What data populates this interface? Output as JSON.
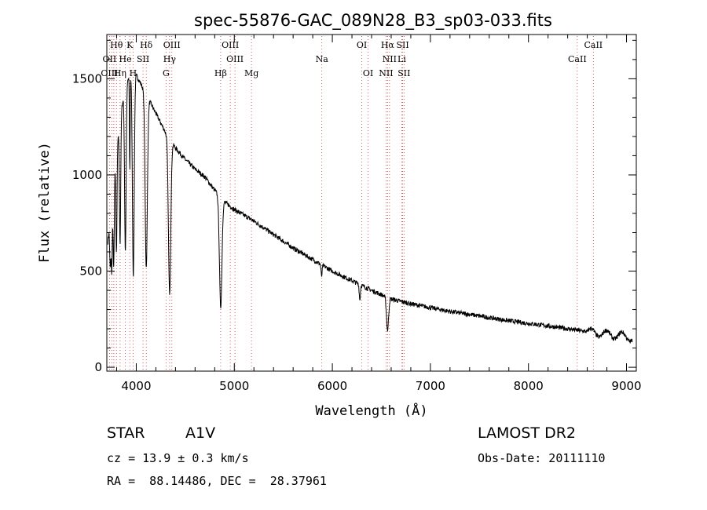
{
  "chart_data": {
    "type": "line",
    "title": "spec-55876-GAC_089N28_B3_sp03-033.fits",
    "xlabel": "Wavelength (Å)",
    "ylabel": "Flux (relative)",
    "xlim": [
      3700,
      9100
    ],
    "ylim": [
      -20,
      1730
    ],
    "x_ticks": [
      4000,
      5000,
      6000,
      7000,
      8000,
      9000
    ],
    "y_ticks": [
      0,
      500,
      1000,
      1500
    ],
    "grid": false,
    "continuum": [
      [
        3700,
        600
      ],
      [
        3760,
        900
      ],
      [
        3800,
        1150
      ],
      [
        3850,
        1350
      ],
      [
        3900,
        1480
      ],
      [
        3950,
        1530
      ],
      [
        4000,
        1520
      ],
      [
        4050,
        1470
      ],
      [
        4100,
        1420
      ],
      [
        4150,
        1370
      ],
      [
        4200,
        1320
      ],
      [
        4250,
        1270
      ],
      [
        4300,
        1220
      ],
      [
        4400,
        1140
      ],
      [
        4500,
        1080
      ],
      [
        4600,
        1030
      ],
      [
        4700,
        990
      ],
      [
        4800,
        920
      ],
      [
        4900,
        860
      ],
      [
        5000,
        820
      ],
      [
        5200,
        760
      ],
      [
        5400,
        690
      ],
      [
        5600,
        620
      ],
      [
        5800,
        560
      ],
      [
        6000,
        500
      ],
      [
        6200,
        450
      ],
      [
        6400,
        400
      ],
      [
        6600,
        355
      ],
      [
        6800,
        330
      ],
      [
        7000,
        310
      ],
      [
        7200,
        290
      ],
      [
        7400,
        275
      ],
      [
        7600,
        258
      ],
      [
        7800,
        242
      ],
      [
        8000,
        228
      ],
      [
        8200,
        215
      ],
      [
        8400,
        200
      ],
      [
        8600,
        185
      ],
      [
        8800,
        172
      ],
      [
        9000,
        160
      ],
      [
        9060,
        150
      ]
    ],
    "absorption": [
      {
        "center": 3735,
        "depth": 250,
        "width": 8
      },
      {
        "center": 3750,
        "depth": 350,
        "width": 8
      },
      {
        "center": 3770,
        "depth": 450,
        "width": 8
      },
      {
        "center": 3798,
        "depth": 550,
        "width": 8
      },
      {
        "center": 3835,
        "depth": 650,
        "width": 9
      },
      {
        "center": 3889,
        "depth": 850,
        "width": 11
      },
      {
        "center": 3934,
        "depth": 500,
        "width": 5
      },
      {
        "center": 3970,
        "depth": 1050,
        "width": 13
      },
      {
        "center": 4102,
        "depth": 900,
        "width": 16
      },
      {
        "center": 4340,
        "depth": 800,
        "width": 17
      },
      {
        "center": 4861,
        "depth": 570,
        "width": 18
      },
      {
        "center": 5890,
        "depth": 60,
        "width": 8
      },
      {
        "center": 6280,
        "depth": 80,
        "width": 8
      },
      {
        "center": 6563,
        "depth": 170,
        "width": 15
      }
    ],
    "noise_amplitude": 12,
    "spectral_lines": [
      {
        "label": "Hθ",
        "wave": 3798,
        "row": 1
      },
      {
        "label": "K",
        "wave": 3934,
        "row": 1
      },
      {
        "label": "Hδ",
        "wave": 4102,
        "row": 1
      },
      {
        "label": "OIII",
        "wave": 4363,
        "row": 1
      },
      {
        "label": "OIII",
        "wave": 4959,
        "row": 1
      },
      {
        "label": "OI",
        "wave": 6300,
        "row": 1
      },
      {
        "label": "Hα",
        "wave": 6563,
        "row": 1
      },
      {
        "label": "SII",
        "wave": 6717,
        "row": 1
      },
      {
        "label": "CaII",
        "wave": 8662,
        "row": 1
      },
      {
        "label": "OII",
        "wave": 3727,
        "row": 2
      },
      {
        "label": "He",
        "wave": 3889,
        "row": 2
      },
      {
        "label": "SII",
        "wave": 4069,
        "row": 2
      },
      {
        "label": "Hγ",
        "wave": 4340,
        "row": 2
      },
      {
        "label": "OIII",
        "wave": 5007,
        "row": 2
      },
      {
        "label": "Na",
        "wave": 5893,
        "row": 2
      },
      {
        "label": "NII",
        "wave": 6583,
        "row": 2
      },
      {
        "label": "Li",
        "wave": 6708,
        "row": 2
      },
      {
        "label": "CaII",
        "wave": 8498,
        "row": 2
      },
      {
        "label": "OIII",
        "wave": 3727,
        "row": 3
      },
      {
        "label": "Hη",
        "wave": 3835,
        "row": 3
      },
      {
        "label": "H",
        "wave": 3968,
        "row": 3
      },
      {
        "label": "G",
        "wave": 4304,
        "row": 3
      },
      {
        "label": "Hβ",
        "wave": 4861,
        "row": 3
      },
      {
        "label": "Mg",
        "wave": 5175,
        "row": 3
      },
      {
        "label": "OI",
        "wave": 6364,
        "row": 3
      },
      {
        "label": "NII",
        "wave": 6548,
        "row": 3
      },
      {
        "label": "SII",
        "wave": 6731,
        "row": 3
      }
    ],
    "marker_lines": [
      3727,
      3750,
      3771,
      3798,
      3835,
      3889,
      3934,
      3968,
      4069,
      4102,
      4304,
      4340,
      4363,
      4861,
      4959,
      5007,
      5175,
      5893,
      6300,
      6364,
      6548,
      6563,
      6583,
      6708,
      6717,
      6731,
      8498,
      8662
    ],
    "line_color": "#000000",
    "marker_color": "#cc3333"
  },
  "info": {
    "object_class": "STAR",
    "subclass": "A1V",
    "survey": "LAMOST DR2",
    "velocity": "cz = 13.9 ± 0.3 km/s",
    "obs_date": "Obs-Date: 20111110",
    "coordinates": "RA =  88.14486, DEC =  28.37961"
  }
}
